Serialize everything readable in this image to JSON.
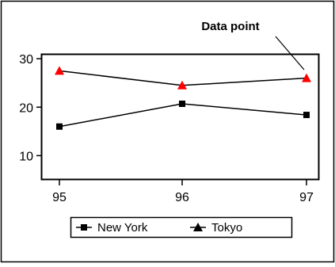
{
  "chart_data": {
    "type": "line",
    "categories": [
      "95",
      "96",
      "97"
    ],
    "yticks": [
      "10",
      "20",
      "30"
    ],
    "ylim": [
      5,
      31
    ],
    "grid": false,
    "legend_position": "bottom",
    "annotation": "Data point",
    "series": [
      {
        "name": "New York",
        "values": [
          16,
          20.7,
          18.4
        ],
        "marker": "square",
        "color": "#000000"
      },
      {
        "name": "Tokyo",
        "values": [
          27.5,
          24.5,
          26
        ],
        "marker": "triangle",
        "color": "#ff0000"
      }
    ]
  }
}
